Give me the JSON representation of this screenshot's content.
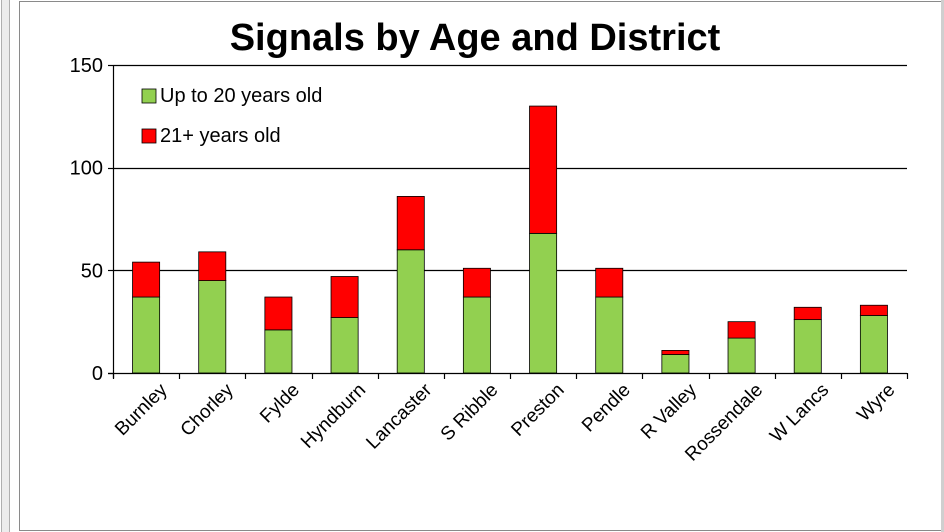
{
  "chart_data": {
    "type": "bar",
    "stacked": true,
    "title": "Signals by Age and District",
    "xlabel": "",
    "ylabel": "",
    "ylim": [
      0,
      150
    ],
    "yticks": [
      0,
      50,
      100,
      150
    ],
    "grid": true,
    "legend_position": "top-left",
    "categories": [
      "Burnley",
      "Chorley",
      "Fylde",
      "Hyndburn",
      "Lancaster",
      "S Ribble",
      "Preston",
      "Pendle",
      "R Valley",
      "Rossendale",
      "W Lancs",
      "Wyre"
    ],
    "series": [
      {
        "name": "Up to 20 years old",
        "color": "#92d050",
        "values": [
          37,
          45,
          21,
          27,
          60,
          37,
          68,
          37,
          9,
          17,
          26,
          28
        ]
      },
      {
        "name": "21+ years old",
        "color": "#ff0000",
        "values": [
          17,
          14,
          16,
          20,
          26,
          14,
          62,
          14,
          2,
          8,
          6,
          5
        ]
      }
    ]
  }
}
